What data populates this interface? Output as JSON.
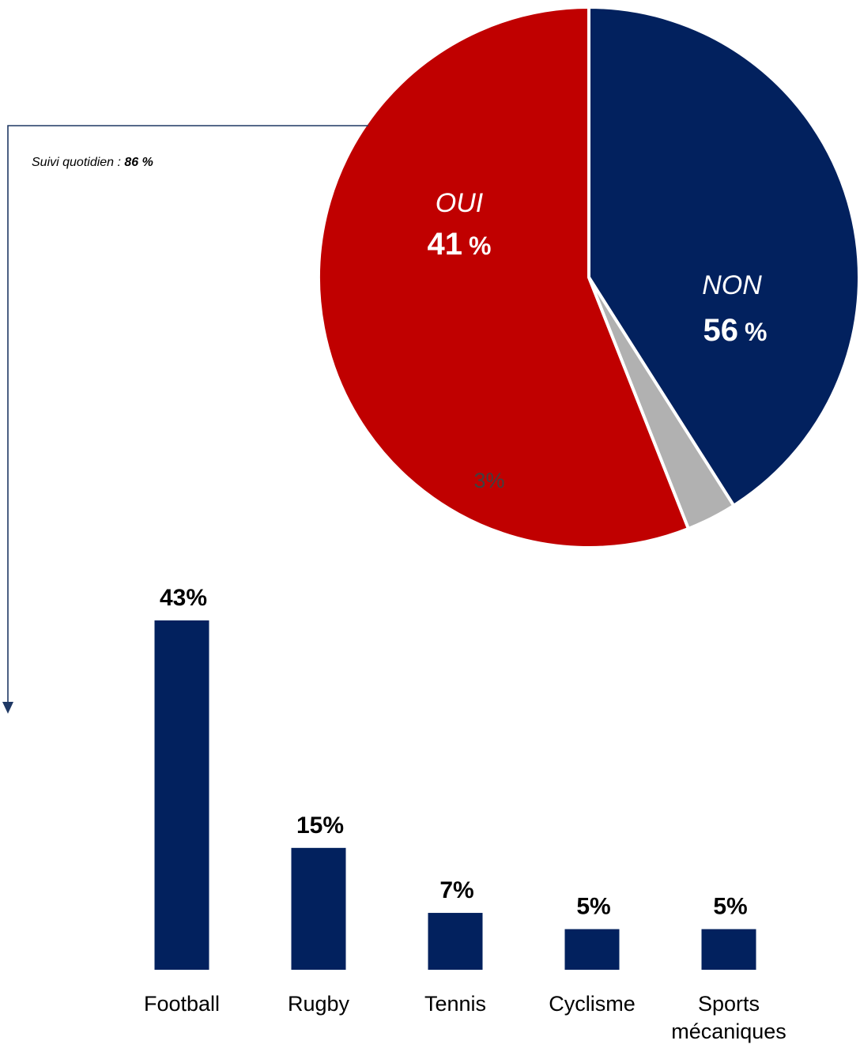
{
  "annotation": {
    "prefix": "Suivi quotidien : ",
    "value": "86 %"
  },
  "colors": {
    "navy": "#02215e",
    "red": "#c00000",
    "grey": "#b1b1b1",
    "connector": "#1f3864"
  },
  "chart_data": [
    {
      "type": "pie",
      "slices": [
        {
          "label": "OUI",
          "value": 41,
          "value_label": "41",
          "unit": "%",
          "color": "#02215e"
        },
        {
          "label": "",
          "value": 3,
          "value_label": "3%",
          "color": "#b1b1b1"
        },
        {
          "label": "NON",
          "value": 56,
          "value_label": "56",
          "unit": "%",
          "color": "#c00000"
        }
      ]
    },
    {
      "type": "bar",
      "categories": [
        "Football",
        "Rugby",
        "Tennis",
        "Cyclisme",
        "Sports mécaniques"
      ],
      "category_lines": [
        [
          "Football"
        ],
        [
          "Rugby"
        ],
        [
          "Tennis"
        ],
        [
          "Cyclisme"
        ],
        [
          "Sports",
          "mécaniques"
        ]
      ],
      "values": [
        43,
        15,
        7,
        5,
        5
      ],
      "value_labels": [
        "43%",
        "15%",
        "7%",
        "5%",
        "5%"
      ],
      "color": "#02215e",
      "ylim": [
        0,
        43
      ],
      "grid": false
    }
  ]
}
